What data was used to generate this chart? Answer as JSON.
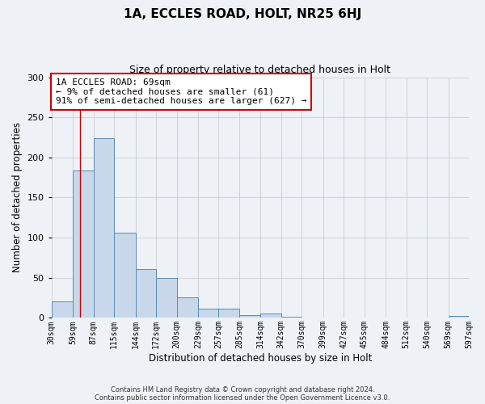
{
  "title": "1A, ECCLES ROAD, HOLT, NR25 6HJ",
  "subtitle": "Size of property relative to detached houses in Holt",
  "xlabel": "Distribution of detached houses by size in Holt",
  "ylabel": "Number of detached properties",
  "bar_edges": [
    30,
    59,
    87,
    115,
    144,
    172,
    200,
    229,
    257,
    285,
    314,
    342,
    370,
    399,
    427,
    455,
    484,
    512,
    540,
    569,
    597
  ],
  "bar_heights": [
    21,
    184,
    224,
    106,
    61,
    50,
    26,
    12,
    12,
    3,
    5,
    1,
    0,
    0,
    0,
    0,
    0,
    0,
    0,
    2
  ],
  "tick_labels": [
    "30sqm",
    "59sqm",
    "87sqm",
    "115sqm",
    "144sqm",
    "172sqm",
    "200sqm",
    "229sqm",
    "257sqm",
    "285sqm",
    "314sqm",
    "342sqm",
    "370sqm",
    "399sqm",
    "427sqm",
    "455sqm",
    "484sqm",
    "512sqm",
    "540sqm",
    "569sqm",
    "597sqm"
  ],
  "bar_color": "#cddaе8",
  "bar_edge_color": "#5a8ab5",
  "ylim": [
    0,
    300
  ],
  "yticks": [
    0,
    50,
    100,
    150,
    200,
    250,
    300
  ],
  "red_line_x": 69,
  "annotation_line1": "1A ECCLES ROAD: 69sqm",
  "annotation_line2": "← 9% of detached houses are smaller (61)",
  "annotation_line3": "91% of semi-detached houses are larger (627) →",
  "annotation_box_color": "#ffffff",
  "annotation_box_edge_color": "#cc0000",
  "red_line_color": "#cc0000",
  "grid_color": "#cccccc",
  "footer_line1": "Contains HM Land Registry data © Crown copyright and database right 2024.",
  "footer_line2": "Contains public sector information licensed under the Open Government Licence v3.0.",
  "background_color": "#eef2f7"
}
